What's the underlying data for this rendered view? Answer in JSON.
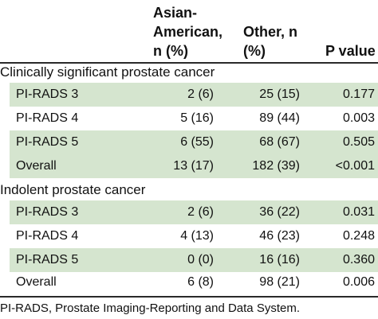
{
  "headers": {
    "asian_line1": "Asian-",
    "asian_line2": "American,",
    "asian_line3": "n (%)",
    "other_line1": "Other, n",
    "other_line2": "(%)",
    "p_value": "P value"
  },
  "sections": [
    {
      "title": "Clinically significant prostate cancer",
      "rows": [
        {
          "label": "PI-RADS 3",
          "asian": "2 (6)",
          "other": "25 (15)",
          "p": "0.177"
        },
        {
          "label": "PI-RADS 4",
          "asian": "5 (16)",
          "other": "89 (44)",
          "p": "0.003"
        },
        {
          "label": "PI-RADS 5",
          "asian": "6 (55)",
          "other": "68 (67)",
          "p": "0.505"
        },
        {
          "label": "Overall",
          "asian": "13 (17)",
          "other": "182 (39)",
          "p": "<0.001"
        }
      ]
    },
    {
      "title": "Indolent prostate cancer",
      "rows": [
        {
          "label": "PI-RADS 3",
          "asian": "2 (6)",
          "other": "36 (22)",
          "p": "0.031"
        },
        {
          "label": "PI-RADS 4",
          "asian": "4 (13)",
          "other": "46 (23)",
          "p": "0.248"
        },
        {
          "label": "PI-RADS 5",
          "asian": "0 (0)",
          "other": "16 (16)",
          "p": "0.360"
        },
        {
          "label": "Overall",
          "asian": "6 (8)",
          "other": "98 (21)",
          "p": "0.006"
        }
      ]
    }
  ],
  "footnote": "PI-RADS, Prostate Imaging-Reporting and Data System.",
  "colors": {
    "row_shade": "#d5e5cf",
    "rule": "#2a2a2a"
  }
}
